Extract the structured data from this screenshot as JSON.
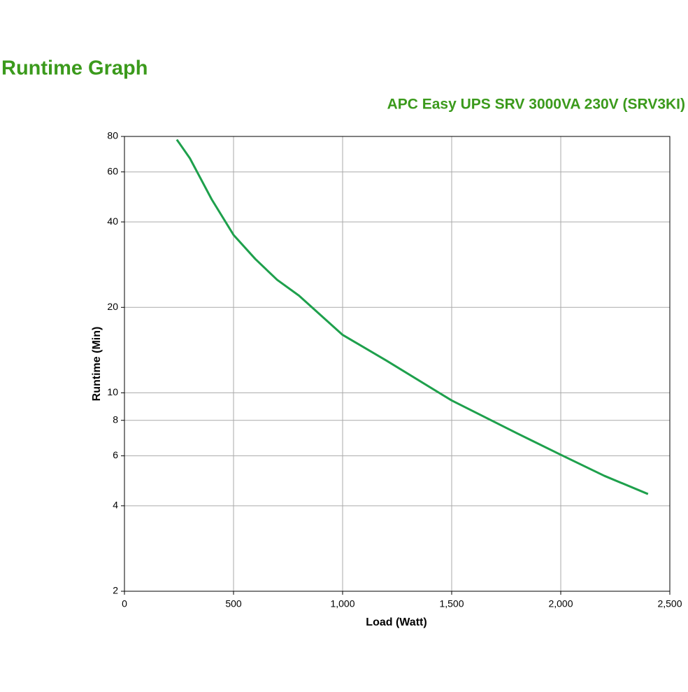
{
  "chart_data": {
    "type": "line",
    "title": "Runtime Graph",
    "subtitle": "APC Easy UPS SRV 3000VA 230V (SRV3KI)",
    "x_label": "Load (Watt)",
    "y_label": "Runtime (Min)",
    "x": [
      240,
      300,
      400,
      500,
      600,
      700,
      800,
      1000,
      1200,
      1500,
      1800,
      2000,
      2200,
      2400
    ],
    "series": [
      {
        "name": "Runtime",
        "color": "#1ea04c",
        "values": [
          78,
          67,
          48,
          36,
          29.6,
          25,
          22,
          16,
          13,
          9.4,
          7.2,
          6.05,
          5.1,
          4.4
        ]
      }
    ],
    "xlim": [
      0,
      2500
    ],
    "xticks": [
      0,
      500,
      {
        "value": 1000,
        "label": "1,000"
      },
      {
        "value": 1500,
        "label": "1,500"
      },
      {
        "value": 2000,
        "label": "2,000"
      },
      {
        "value": 2500,
        "label": "2,500"
      }
    ],
    "ylim": [
      2,
      80
    ],
    "yticks": [
      2,
      4,
      6,
      8,
      10,
      20,
      40,
      60,
      80
    ],
    "y_scale": "log",
    "grid": true
  }
}
